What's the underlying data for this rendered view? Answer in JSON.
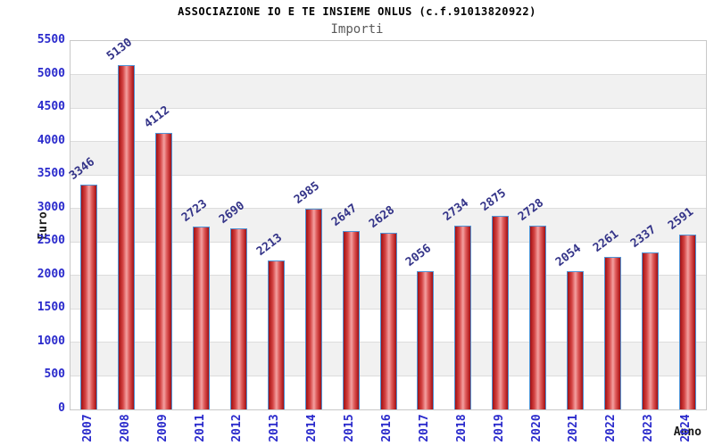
{
  "header": {
    "title": "ASSOCIAZIONE IO E TE INSIEME ONLUS (c.f.91013820922)",
    "subtitle": "Importi"
  },
  "chart_data": {
    "type": "bar",
    "title": "ASSOCIAZIONE IO E TE INSIEME ONLUS (c.f.91013820922)",
    "subtitle": "Importi",
    "xlabel": "Anno",
    "ylabel": "Euro",
    "categories": [
      "2007",
      "2008",
      "2009",
      "2011",
      "2012",
      "2013",
      "2014",
      "2015",
      "2016",
      "2017",
      "2018",
      "2019",
      "2020",
      "2021",
      "2022",
      "2023",
      "2024"
    ],
    "values": [
      3346,
      5130,
      4112,
      2723,
      2690,
      2213,
      2985,
      2647,
      2628,
      2056,
      2734,
      2875,
      2728,
      2054,
      2261,
      2337,
      2591
    ],
    "ylim": [
      0,
      5500
    ],
    "ytick_step": 500,
    "yticks": [
      0,
      500,
      1000,
      1500,
      2000,
      2500,
      3000,
      3500,
      4000,
      4500,
      5000,
      5500
    ],
    "grid": "horizontal-bands",
    "legend": "none",
    "bar_labels_rotation_deg": -37,
    "x_labels_rotation_deg": -90
  },
  "colors": {
    "background": "#ffffff",
    "title": "#000000",
    "subtitle": "#5a5a5a",
    "axis_title": "#1a1a1a",
    "tick_label": "#2a2acc",
    "value_label": "#333388",
    "bar_edge_dark": "#9d1117",
    "bar_center_light": "#f2a0a0",
    "bar_border": "#4f94d6",
    "band_gray": "#f1f1f1",
    "gridline": "#dcdcdc",
    "plot_border": "#c8c8c8"
  }
}
